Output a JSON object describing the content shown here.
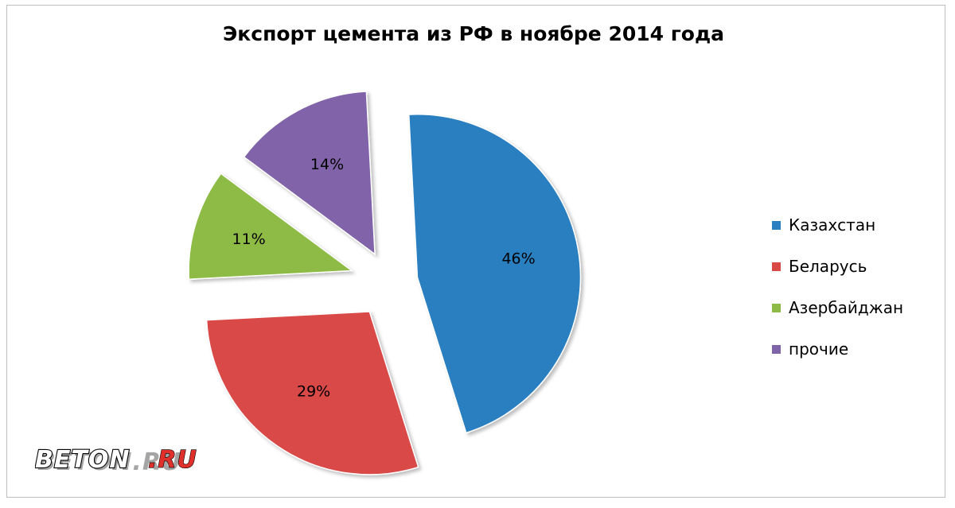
{
  "chart_data": {
    "type": "pie",
    "title": "Экспорт цемента из РФ в ноябре 2014 года",
    "categories": [
      "Казахстан",
      "Беларусь",
      "Азербайджан",
      "прочие"
    ],
    "values": [
      46,
      29,
      11,
      14
    ],
    "labels": [
      "46%",
      "29%",
      "11%",
      "14%"
    ],
    "colors": [
      "#2a7fc1",
      "#d94a46",
      "#8dbb45",
      "#8064a8"
    ],
    "exploded": true,
    "legend_position": "right"
  },
  "logo": {
    "text": "BETON.RU"
  }
}
